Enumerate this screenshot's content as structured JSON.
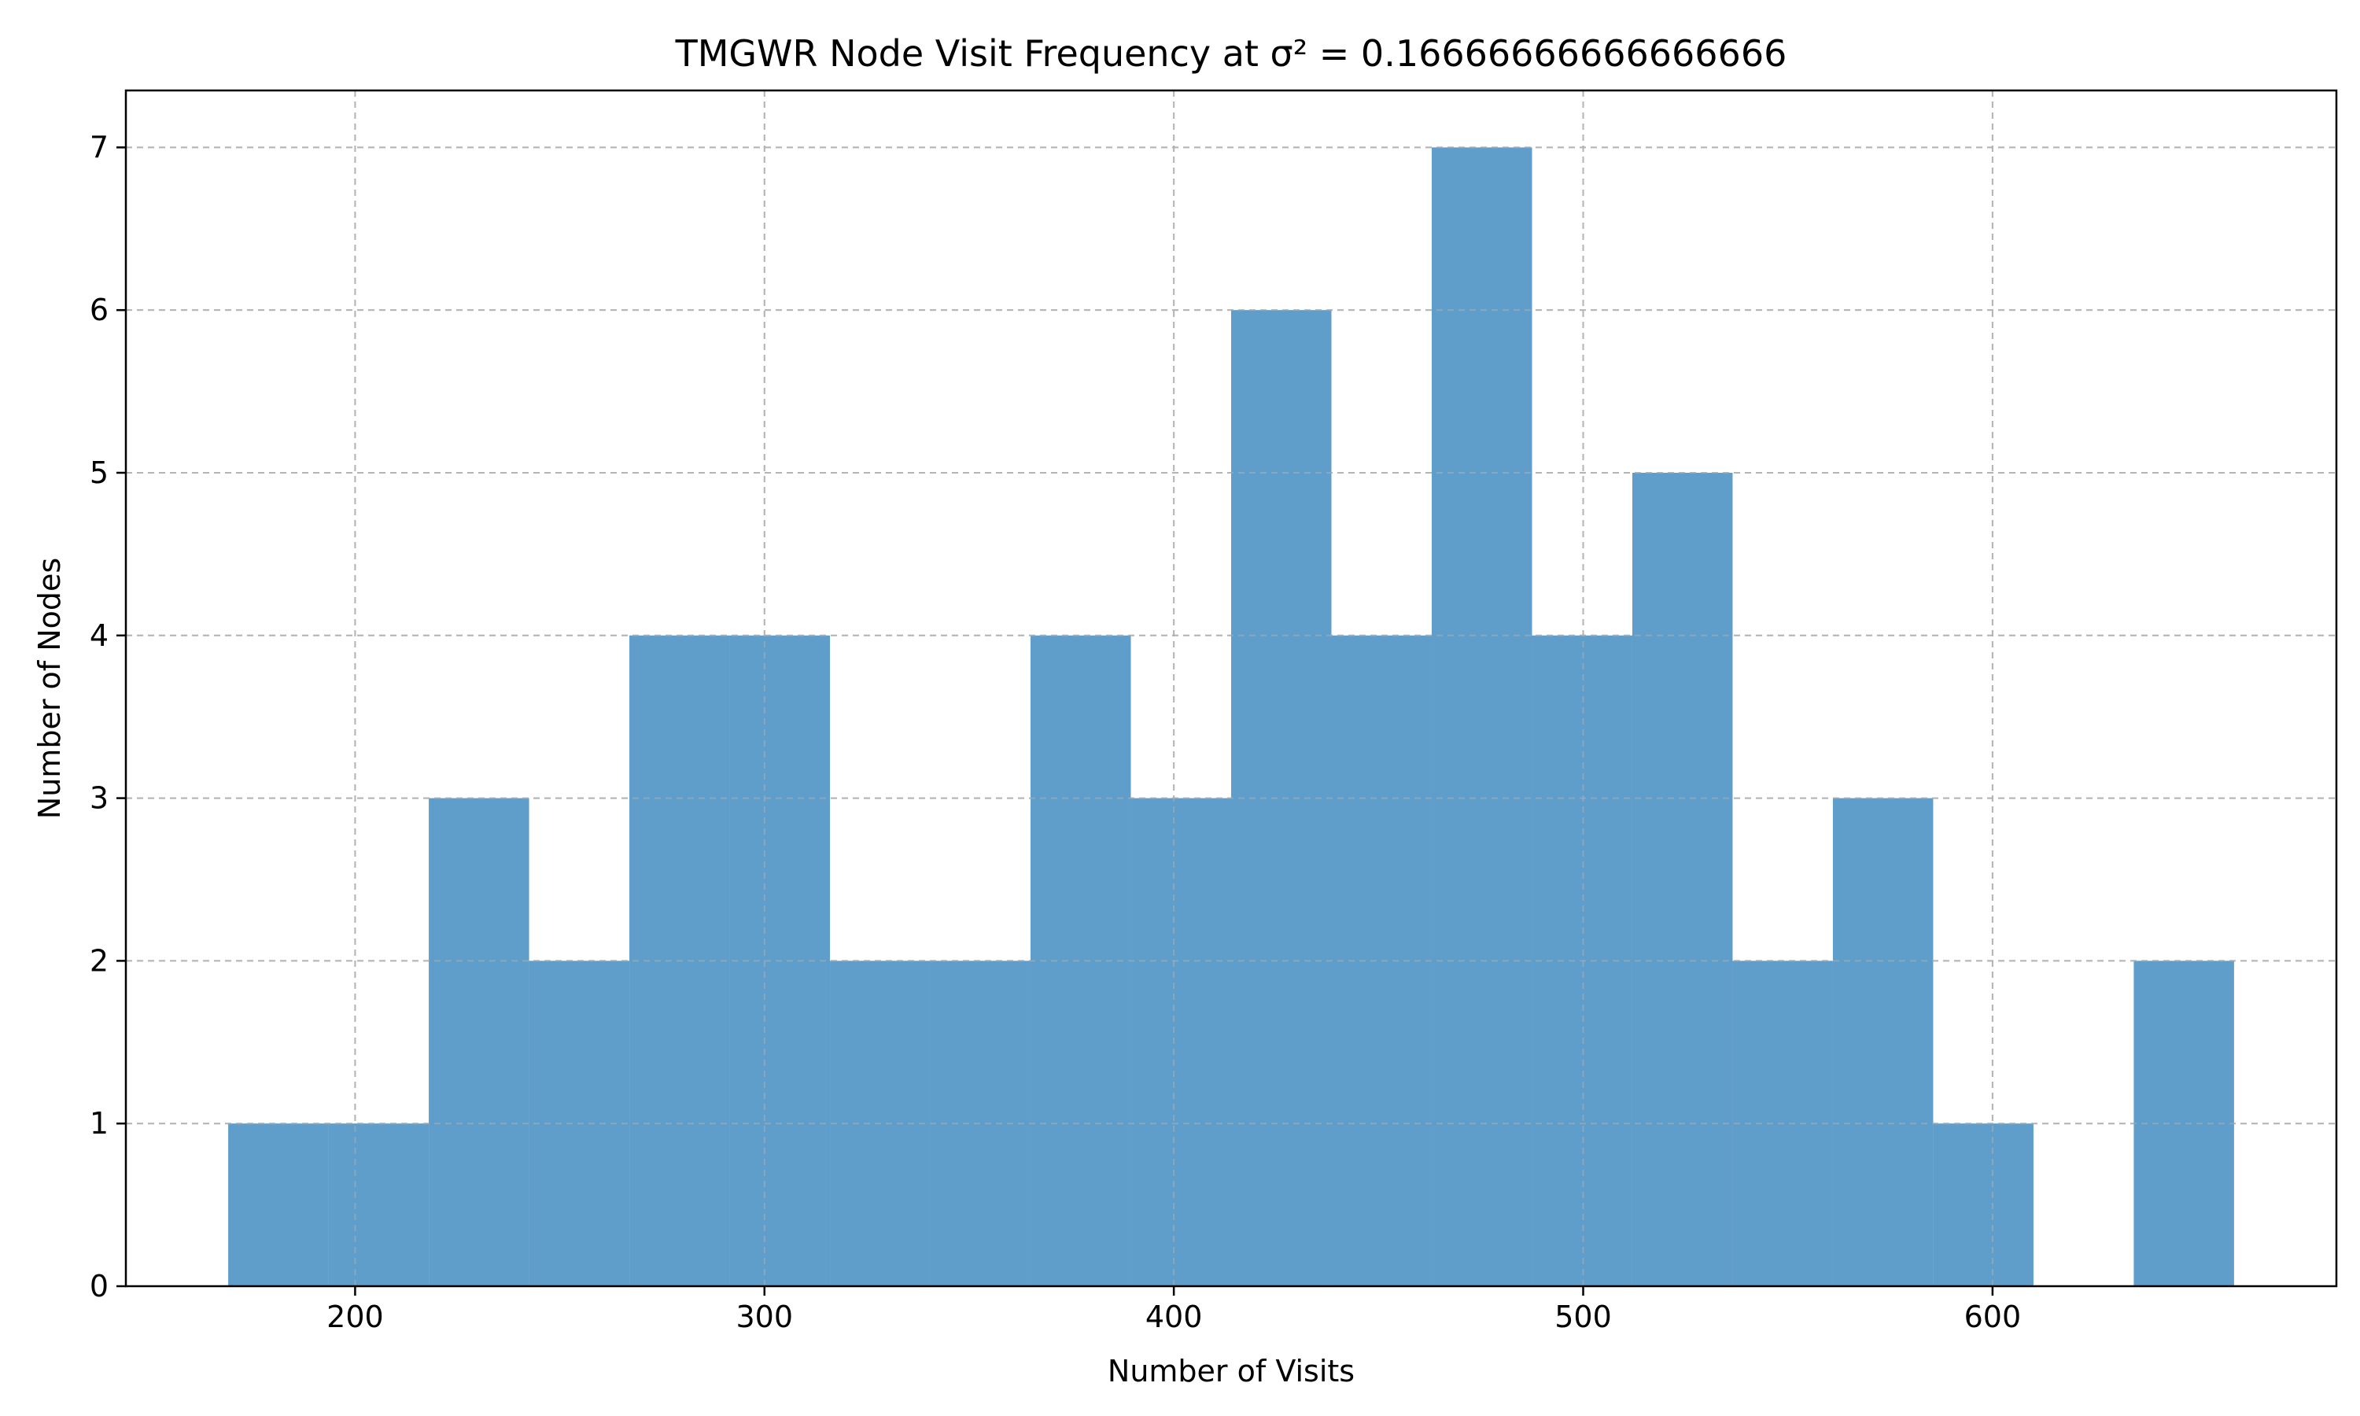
{
  "chart_data": {
    "type": "bar",
    "title": "TMGWR Node Visit Frequency at σ² = 0.16666666666666666",
    "xlabel": "Number of Visits",
    "ylabel": "Number of Nodes",
    "xlim": [
      144,
      684
    ],
    "ylim": [
      0,
      7.35
    ],
    "xticks": [
      200,
      300,
      400,
      500,
      600
    ],
    "yticks": [
      0,
      1,
      2,
      3,
      4,
      5,
      6,
      7
    ],
    "grid": true,
    "bar_color": "#5f9dcb",
    "bins": [
      {
        "start": 169.0,
        "end": 193.5,
        "count": 1
      },
      {
        "start": 193.5,
        "end": 218.0,
        "count": 1
      },
      {
        "start": 218.0,
        "end": 242.5,
        "count": 3
      },
      {
        "start": 242.5,
        "end": 267.0,
        "count": 2
      },
      {
        "start": 267.0,
        "end": 291.5,
        "count": 4
      },
      {
        "start": 291.5,
        "end": 316.0,
        "count": 4
      },
      {
        "start": 316.0,
        "end": 340.5,
        "count": 2
      },
      {
        "start": 340.5,
        "end": 365.0,
        "count": 2
      },
      {
        "start": 365.0,
        "end": 389.5,
        "count": 4
      },
      {
        "start": 389.5,
        "end": 414.0,
        "count": 3
      },
      {
        "start": 414.0,
        "end": 438.5,
        "count": 6
      },
      {
        "start": 438.5,
        "end": 463.0,
        "count": 4
      },
      {
        "start": 463.0,
        "end": 487.5,
        "count": 7
      },
      {
        "start": 487.5,
        "end": 512.0,
        "count": 4
      },
      {
        "start": 512.0,
        "end": 536.5,
        "count": 5
      },
      {
        "start": 536.5,
        "end": 561.0,
        "count": 2
      },
      {
        "start": 561.0,
        "end": 585.5,
        "count": 3
      },
      {
        "start": 585.5,
        "end": 610.0,
        "count": 1
      },
      {
        "start": 610.0,
        "end": 634.5,
        "count": 0
      },
      {
        "start": 634.5,
        "end": 659.0,
        "count": 2
      }
    ]
  }
}
